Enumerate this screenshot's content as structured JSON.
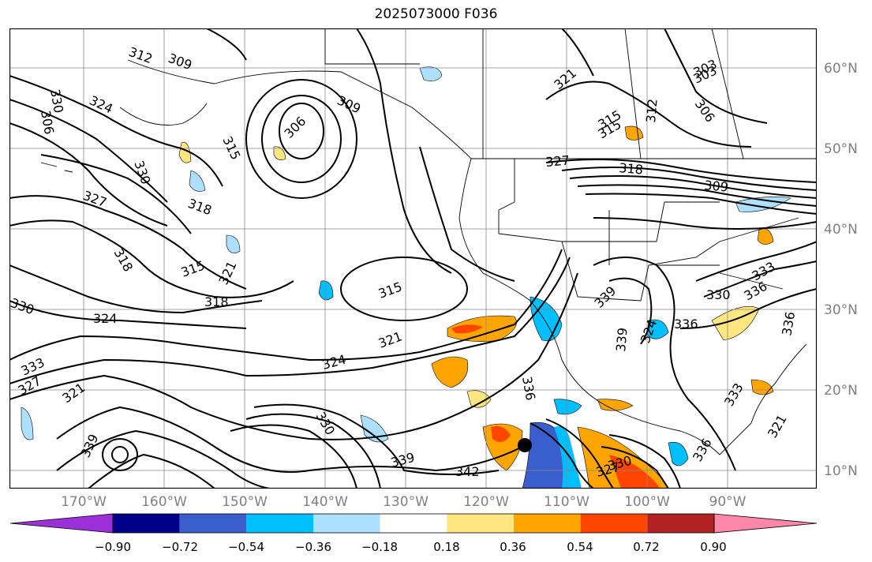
{
  "title": "2025073000 F036",
  "lat_labels": [
    "60°N",
    "50°N",
    "40°N",
    "30°N",
    "20°N",
    "10°N"
  ],
  "lon_labels": [
    "170°W",
    "160°W",
    "150°W",
    "140°W",
    "130°W",
    "120°W",
    "110°W",
    "100°W",
    "90°W"
  ],
  "contour_labels": [
    "312",
    "309",
    "306",
    "303",
    "330",
    "324",
    "306",
    "309",
    "315",
    "315",
    "330",
    "327",
    "318",
    "318",
    "315",
    "321",
    "318",
    "324",
    "330",
    "333",
    "327",
    "321",
    "315",
    "321",
    "324",
    "330",
    "336",
    "339",
    "342",
    "339",
    "327",
    "318",
    "309",
    "321",
    "303",
    "306",
    "315",
    "312",
    "336",
    "339",
    "330",
    "336",
    "333",
    "336",
    "324",
    "330",
    "327",
    "339",
    "336",
    "333",
    "321"
  ],
  "colorbar": {
    "tick_labels": [
      "−0.90",
      "−0.72",
      "−0.54",
      "−0.36",
      "−0.18",
      "0.18",
      "0.36",
      "0.54",
      "0.72",
      "0.90"
    ],
    "colors": [
      "#9b30d9",
      "#00008b",
      "#3a5fcd",
      "#00bfff",
      "#addfff",
      "#ffffff",
      "#ffe680",
      "#ffa500",
      "#ff4500",
      "#b22222",
      "#ff88aa"
    ]
  },
  "marker": "storm-center-dot"
}
